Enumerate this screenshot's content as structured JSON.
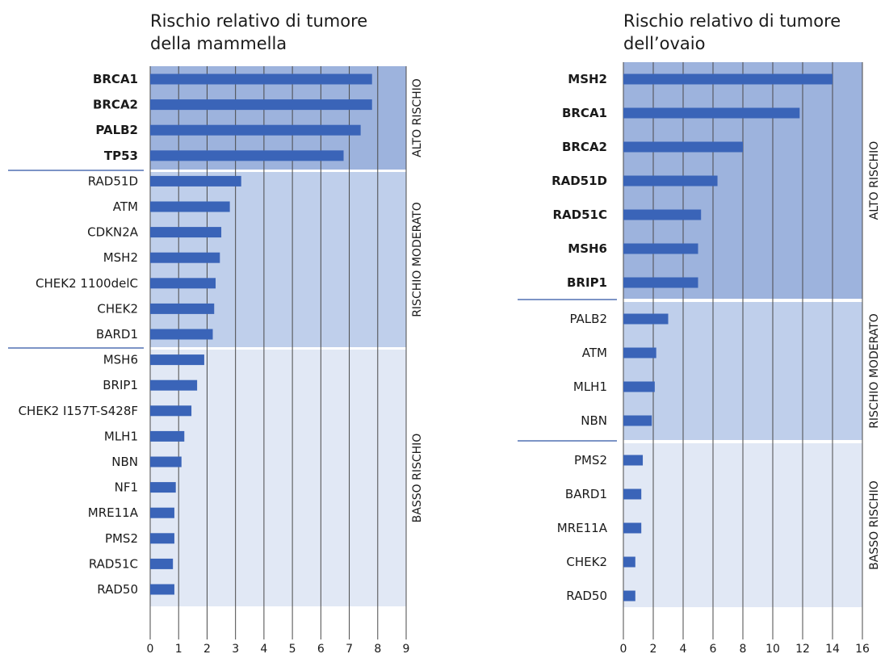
{
  "chart_data": [
    {
      "type": "bar",
      "orientation": "horizontal",
      "title_line1": "Rischio relativo di tumore",
      "title_line2": "della mammella",
      "xlim": [
        0,
        9
      ],
      "ticks": [
        0,
        1,
        2,
        3,
        4,
        5,
        6,
        7,
        8,
        9
      ],
      "grid": true,
      "bar_color": "#3a64b8",
      "groups": [
        {
          "label": "ALTO RISCHIO",
          "color": "#9db3dd",
          "categories": [
            "BRCA1",
            "BRCA2",
            "PALB2",
            "TP53"
          ],
          "values": [
            7.8,
            7.8,
            7.4,
            6.8
          ],
          "bold": true
        },
        {
          "label": "RISCHIO MODERATO",
          "color": "#bfcfeb",
          "categories": [
            "RAD51D",
            "ATM",
            "CDKN2A",
            "MSH2",
            "CHEK2 1100delC",
            "CHEK2",
            "BARD1"
          ],
          "values": [
            3.2,
            2.8,
            2.5,
            2.45,
            2.3,
            2.25,
            2.2
          ],
          "bold": false
        },
        {
          "label": "BASSO RISCHIO",
          "color": "#e1e8f5",
          "categories": [
            "MSH6",
            "BRIP1",
            "CHEK2 I157T-S428F",
            "MLH1",
            "NBN",
            "NF1",
            "MRE11A",
            "PMS2",
            "RAD51C",
            "RAD50"
          ],
          "values": [
            1.9,
            1.65,
            1.45,
            1.2,
            1.1,
            0.9,
            0.85,
            0.85,
            0.8,
            0.85
          ],
          "bold": false
        }
      ]
    },
    {
      "type": "bar",
      "orientation": "horizontal",
      "title_line1": "Rischio relativo di tumore",
      "title_line2": "dell’ovaio",
      "xlim": [
        0,
        16
      ],
      "ticks": [
        0,
        2,
        4,
        6,
        8,
        10,
        12,
        14,
        16
      ],
      "grid": true,
      "bar_color": "#3a64b8",
      "groups": [
        {
          "label": "ALTO RISCHIO",
          "color": "#9db3dd",
          "categories": [
            "MSH2",
            "BRCA1",
            "BRCA2",
            "RAD51D",
            "RAD51C",
            "MSH6",
            "BRIP1"
          ],
          "values": [
            14,
            11.8,
            8,
            6.3,
            5.2,
            5,
            5
          ],
          "bold": true
        },
        {
          "label": "RISCHIO MODERATO",
          "color": "#bfcfeb",
          "categories": [
            "PALB2",
            "ATM",
            "MLH1",
            "NBN"
          ],
          "values": [
            3,
            2.2,
            2.1,
            1.9
          ],
          "bold": false
        },
        {
          "label": "BASSO RISCHIO",
          "color": "#e1e8f5",
          "categories": [
            "PMS2",
            "BARD1",
            "MRE11A",
            "CHEK2",
            "RAD50"
          ],
          "values": [
            1.3,
            1.2,
            1.2,
            0.8,
            0.8
          ],
          "bold": false
        }
      ]
    }
  ]
}
